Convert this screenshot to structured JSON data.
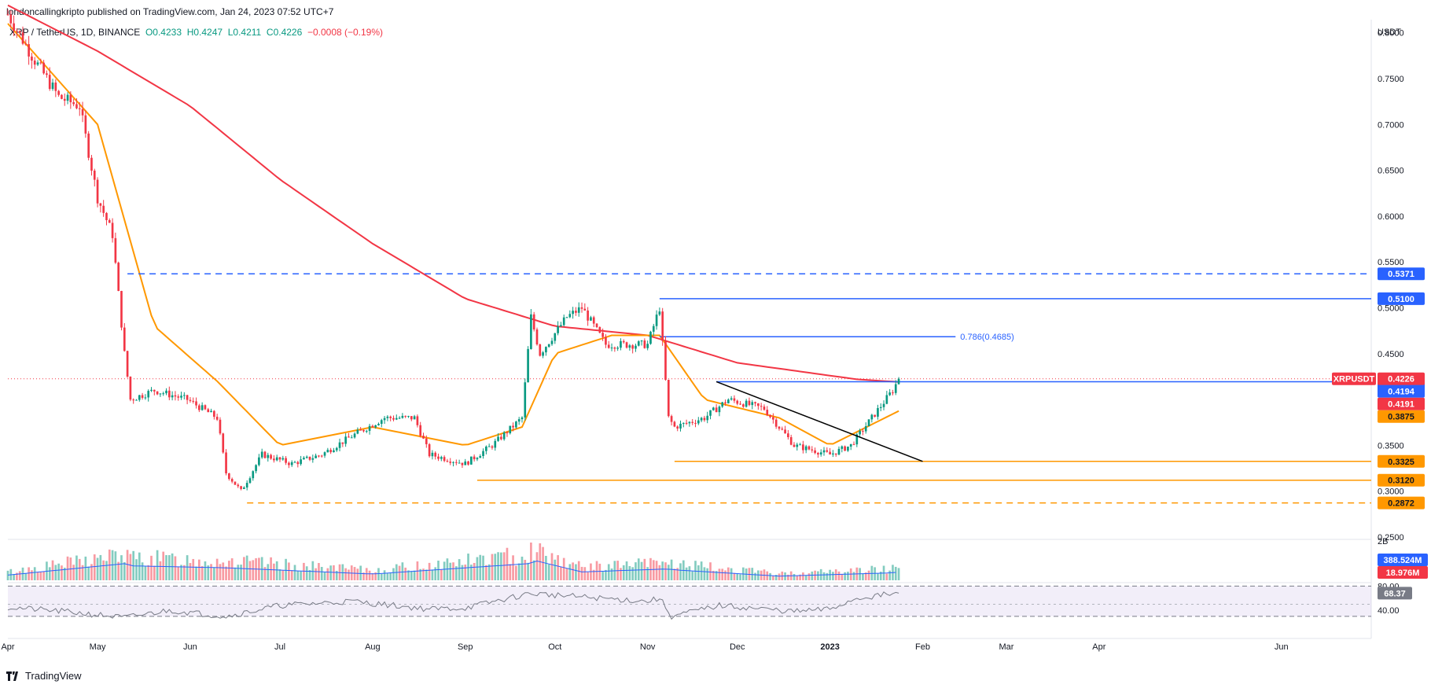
{
  "header": {
    "publisher_line": "londoncallingkripto published on TradingView.com, Jan 24, 2023 07:52 UTC+7"
  },
  "legend": {
    "symbol": "XRP / TetherUS, 1D, BINANCE",
    "open": "O0.4233",
    "high": "H0.4247",
    "low": "L0.4211",
    "close": "C0.4226",
    "change": "−0.0008 (−0.19%)"
  },
  "watermark": {
    "text": "TradingView",
    "icon": "tradingview-logo-icon"
  },
  "colors": {
    "up": "#089981",
    "down": "#f23645",
    "ma200": "#f23645",
    "ma20": "#ff9800",
    "support": "#ff9800",
    "resistance": "#2962ff",
    "trendline": "#000000",
    "rsi": "#787b86",
    "rsi_band": "#7e57c2",
    "volume_ma": "#2962ff"
  },
  "chart_data": [
    {
      "type": "candlestick",
      "symbol": "XRPUSDT",
      "interval": "1D",
      "exchange": "BINANCE",
      "quote_unit": "USDT",
      "x_axis": {
        "start": "2022-04-01",
        "end": "2023-06-30",
        "ticks": [
          "Apr",
          "May",
          "Jun",
          "Jul",
          "Aug",
          "Sep",
          "Oct",
          "Nov",
          "Dec",
          "2023",
          "Feb",
          "Mar",
          "Apr",
          "Jun"
        ]
      },
      "y_axis": {
        "range": [
          0.25,
          0.81
        ],
        "ticks": [
          "0.8000",
          "0.7500",
          "0.7000",
          "0.6500",
          "0.6000",
          "0.5500",
          "0.5000",
          "0.4500",
          "0.3500",
          "0.3000",
          "0.2500"
        ]
      },
      "price_key": [
        [
          "2022-04-01",
          0.82
        ],
        [
          "2022-04-10",
          0.77
        ],
        [
          "2022-04-18",
          0.73
        ],
        [
          "2022-04-25",
          0.72
        ],
        [
          "2022-05-01",
          0.62
        ],
        [
          "2022-05-06",
          0.58
        ],
        [
          "2022-05-10",
          0.45
        ],
        [
          "2022-05-12",
          0.4
        ],
        [
          "2022-05-20",
          0.41
        ],
        [
          "2022-05-31",
          0.4
        ],
        [
          "2022-06-10",
          0.38
        ],
        [
          "2022-06-13",
          0.32
        ],
        [
          "2022-06-18",
          0.3
        ],
        [
          "2022-06-25",
          0.34
        ],
        [
          "2022-07-05",
          0.33
        ],
        [
          "2022-07-15",
          0.34
        ],
        [
          "2022-07-25",
          0.36
        ],
        [
          "2022-08-05",
          0.38
        ],
        [
          "2022-08-15",
          0.38
        ],
        [
          "2022-08-20",
          0.34
        ],
        [
          "2022-09-01",
          0.33
        ],
        [
          "2022-09-10",
          0.35
        ],
        [
          "2022-09-20",
          0.38
        ],
        [
          "2022-09-23",
          0.49
        ],
        [
          "2022-09-26",
          0.45
        ],
        [
          "2022-10-05",
          0.49
        ],
        [
          "2022-10-10",
          0.5
        ],
        [
          "2022-10-18",
          0.46
        ],
        [
          "2022-11-01",
          0.46
        ],
        [
          "2022-11-05",
          0.5
        ],
        [
          "2022-11-08",
          0.38
        ],
        [
          "2022-11-10",
          0.37
        ],
        [
          "2022-11-20",
          0.38
        ],
        [
          "2022-11-28",
          0.4
        ],
        [
          "2022-12-10",
          0.39
        ],
        [
          "2022-12-20",
          0.35
        ],
        [
          "2023-01-01",
          0.34
        ],
        [
          "2023-01-08",
          0.35
        ],
        [
          "2023-01-15",
          0.38
        ],
        [
          "2023-01-22",
          0.41
        ],
        [
          "2023-01-24",
          0.4226
        ]
      ],
      "moving_averages": [
        {
          "color": "#f23645",
          "values": [
            [
              "2022-04-01",
              0.83
            ],
            [
              "2022-05-01",
              0.78
            ],
            [
              "2022-06-01",
              0.72
            ],
            [
              "2022-07-01",
              0.64
            ],
            [
              "2022-08-01",
              0.57
            ],
            [
              "2022-09-01",
              0.51
            ],
            [
              "2022-10-01",
              0.48
            ],
            [
              "2022-11-01",
              0.47
            ],
            [
              "2022-12-01",
              0.44
            ],
            [
              "2023-01-10",
              0.422
            ],
            [
              "2023-01-24",
              0.4191
            ]
          ]
        },
        {
          "color": "#ff9800",
          "values": [
            [
              "2022-04-01",
              0.81
            ],
            [
              "2022-05-01",
              0.7
            ],
            [
              "2022-05-20",
              0.48
            ],
            [
              "2022-06-10",
              0.42
            ],
            [
              "2022-07-01",
              0.35
            ],
            [
              "2022-08-01",
              0.37
            ],
            [
              "2022-09-01",
              0.35
            ],
            [
              "2022-09-20",
              0.37
            ],
            [
              "2022-10-01",
              0.45
            ],
            [
              "2022-10-20",
              0.47
            ],
            [
              "2022-11-05",
              0.47
            ],
            [
              "2022-11-20",
              0.4
            ],
            [
              "2022-12-15",
              0.38
            ],
            [
              "2023-01-01",
              0.35
            ],
            [
              "2023-01-24",
              0.3875
            ]
          ]
        }
      ],
      "levels": [
        {
          "label": "0.5371",
          "value": 0.5371,
          "style": "dashed",
          "color": "#2962ff",
          "from": "2022-05-11"
        },
        {
          "label": "0.5100",
          "value": 0.51,
          "style": "solid",
          "color": "#2962ff",
          "from": "2022-11-05"
        },
        {
          "label": "0.786(0.4685)",
          "value": 0.4685,
          "style": "solid",
          "color": "#2962ff",
          "from": "2022-11-05",
          "to": "2023-02-12"
        },
        {
          "label": "0.4194",
          "value": 0.4194,
          "style": "solid",
          "color": "#2962ff",
          "from": "2022-11-24"
        },
        {
          "label": "0.3325",
          "value": 0.3325,
          "style": "solid",
          "color": "#ff9800",
          "from": "2022-11-10"
        },
        {
          "label": "0.3120",
          "value": 0.312,
          "style": "solid",
          "color": "#ff9800",
          "from": "2022-09-05"
        },
        {
          "label": "0.2872",
          "value": 0.2872,
          "style": "dashed",
          "color": "#ff9800",
          "from": "2022-06-20"
        }
      ],
      "trendline": [
        [
          "2022-11-24",
          0.4194
        ],
        [
          "2023-02-01",
          0.3325
        ]
      ],
      "price_labels": [
        {
          "label": "XRPUSDT",
          "value": "0.4226",
          "color": "#f23645"
        },
        {
          "label": "",
          "value": "0.4194",
          "color": "#2962ff"
        },
        {
          "label": "",
          "value": "0.4191",
          "color": "#f23645"
        },
        {
          "label": "",
          "value": "0.3875",
          "color": "#ff9800"
        }
      ]
    },
    {
      "type": "bar",
      "name": "volume",
      "y_axis": {
        "tick": "2B"
      },
      "values_key": [
        [
          "2022-04-01",
          0.25
        ],
        [
          "2022-05-10",
          0.8
        ],
        [
          "2022-05-11",
          0.7
        ],
        [
          "2022-06-13",
          0.6
        ],
        [
          "2022-08-01",
          0.3
        ],
        [
          "2022-09-22",
          0.8
        ],
        [
          "2022-09-23",
          1.0
        ],
        [
          "2022-10-10",
          0.4
        ],
        [
          "2022-11-08",
          0.55
        ],
        [
          "2022-11-10",
          0.5
        ],
        [
          "2022-12-15",
          0.2
        ],
        [
          "2023-01-20",
          0.35
        ],
        [
          "2023-01-24",
          0.39
        ]
      ],
      "labels": [
        {
          "value": "388.524M",
          "color": "#2962ff"
        },
        {
          "value": "18.976M",
          "color": "#f23645"
        }
      ]
    },
    {
      "type": "line",
      "name": "rsi",
      "y_axis": {
        "ticks": [
          "80.00",
          "40.00"
        ],
        "band": [
          30,
          70
        ]
      },
      "values_key": [
        [
          "2022-04-01",
          45
        ],
        [
          "2022-04-20",
          38
        ],
        [
          "2022-05-10",
          28
        ],
        [
          "2022-05-25",
          40
        ],
        [
          "2022-06-13",
          30
        ],
        [
          "2022-07-01",
          48
        ],
        [
          "2022-07-25",
          55
        ],
        [
          "2022-08-20",
          42
        ],
        [
          "2022-09-01",
          44
        ],
        [
          "2022-09-23",
          68
        ],
        [
          "2022-10-10",
          62
        ],
        [
          "2022-11-01",
          55
        ],
        [
          "2022-11-05",
          60
        ],
        [
          "2022-11-09",
          30
        ],
        [
          "2022-11-25",
          48
        ],
        [
          "2022-12-20",
          38
        ],
        [
          "2023-01-01",
          42
        ],
        [
          "2023-01-10",
          60
        ],
        [
          "2023-01-24",
          68.37
        ]
      ],
      "label": {
        "value": "68.37",
        "color": "#787b86"
      }
    }
  ]
}
